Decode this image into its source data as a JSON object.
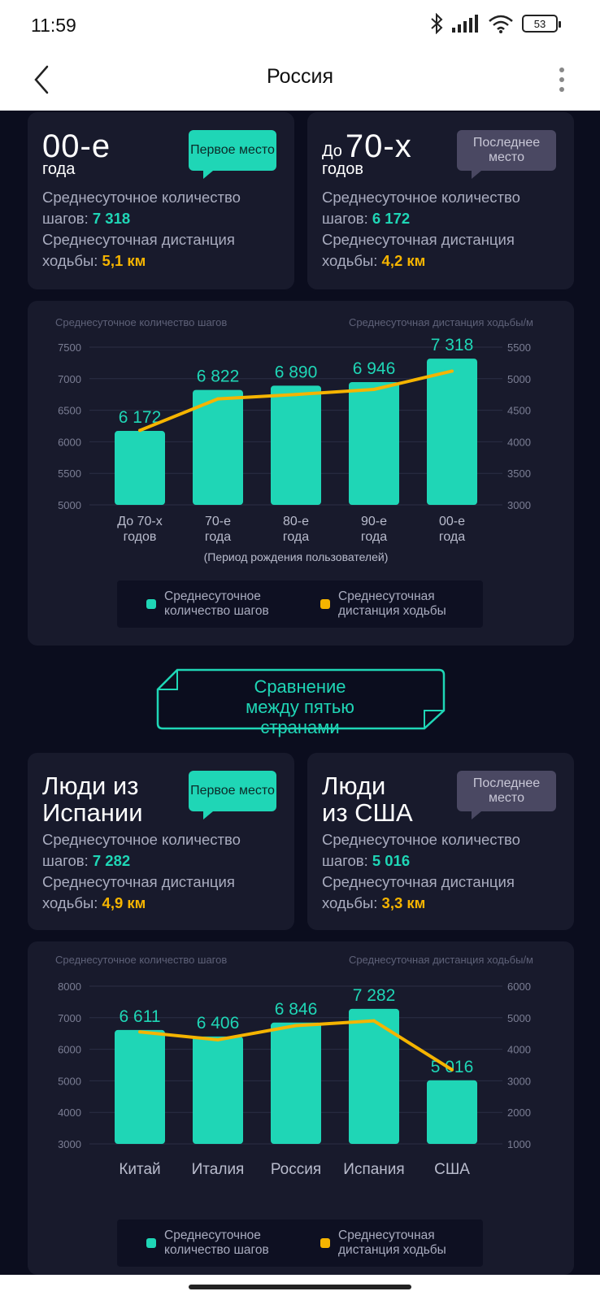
{
  "status": {
    "time": "11:59",
    "battery": "53"
  },
  "app_bar": {
    "title": "Россия"
  },
  "generation_cards": [
    {
      "prefix": "",
      "big": "00-е",
      "sub": "года",
      "badge": "Первое место",
      "badge_type": "first",
      "steps_label": "Среднесуточное количество шагов:",
      "steps_value": "7 318",
      "dist_label": "Среднесуточная дистанция ходьбы:",
      "dist_value": "5,1 км"
    },
    {
      "prefix": "До",
      "big": "70-х",
      "sub": "годов",
      "badge": "Последнее место",
      "badge_type": "last",
      "steps_label": "Среднесуточное количество шагов:",
      "steps_value": "6 172",
      "dist_label": "Среднесуточная дистанция ходьбы:",
      "dist_value": "4,2 км"
    }
  ],
  "country_cards": [
    {
      "line1": "Люди из",
      "line2": "Испании",
      "badge": "Первое место",
      "badge_type": "first",
      "steps_label": "Среднесуточное количество шагов:",
      "steps_value": "7 282",
      "dist_label": "Среднесуточная дистанция ходьбы:",
      "dist_value": "4,9 км"
    },
    {
      "line1": "Люди",
      "line2": "из США",
      "badge": "Последнее место",
      "badge_type": "last",
      "steps_label": "Среднесуточное количество шагов:",
      "steps_value": "5 016",
      "dist_label": "Среднесуточная дистанция ходьбы:",
      "dist_value": "3,3 км"
    }
  ],
  "compare_banner": "Сравнение между пятью странами",
  "legend": {
    "steps": "Среднесуточное количество шагов",
    "distance": "Среднесуточная дистанция ходьбы"
  },
  "colors": {
    "bar": "#1fd6b6",
    "line": "#f5b400",
    "card": "#181a2c",
    "background": "#0b0d1e"
  },
  "chart_data": [
    {
      "type": "bar",
      "ylabel_left": "Среднесуточное количество шагов",
      "ylabel_right": "Среднесуточная дистанция ходьбы/м",
      "xlabel": "(Период рождения пользователей)",
      "categories": [
        "До 70-х годов",
        "70-е года",
        "80-е года",
        "90-е года",
        "00-е года"
      ],
      "y_left": {
        "min": 5000,
        "max": 7500,
        "ticks": [
          5000,
          5500,
          6000,
          6500,
          7000,
          7500
        ]
      },
      "y_right": {
        "min": 3000,
        "max": 5500,
        "ticks": [
          3000,
          3500,
          4000,
          4500,
          5000,
          5500
        ]
      },
      "series": [
        {
          "name": "Среднесуточное количество шагов",
          "kind": "bar",
          "axis": "left",
          "values": [
            6172,
            6822,
            6890,
            6946,
            7318
          ],
          "labels": [
            "6 172",
            "6 822",
            "6 890",
            "6 946",
            "7 318"
          ]
        },
        {
          "name": "Среднесуточная дистанция ходьбы",
          "kind": "line",
          "axis": "right",
          "values": [
            4180,
            4680,
            4750,
            4830,
            5120
          ]
        }
      ]
    },
    {
      "type": "bar",
      "ylabel_left": "Среднесуточное количество шагов",
      "ylabel_right": "Среднесуточная дистанция ходьбы/м",
      "xlabel": "",
      "categories": [
        "Китай",
        "Италия",
        "Россия",
        "Испания",
        "США"
      ],
      "y_left": {
        "min": 3000,
        "max": 8000,
        "ticks": [
          3000,
          4000,
          5000,
          6000,
          7000,
          8000
        ]
      },
      "y_right": {
        "min": 1000,
        "max": 6000,
        "ticks": [
          1000,
          2000,
          3000,
          4000,
          5000,
          6000
        ]
      },
      "series": [
        {
          "name": "Среднесуточное количество шагов",
          "kind": "bar",
          "axis": "left",
          "values": [
            6611,
            6406,
            6846,
            7282,
            5016
          ],
          "labels": [
            "6 611",
            "6 406",
            "6 846",
            "7 282",
            "5 016"
          ]
        },
        {
          "name": "Среднесуточная дистанция ходьбы",
          "kind": "line",
          "axis": "right",
          "values": [
            4550,
            4300,
            4750,
            4900,
            3350
          ]
        }
      ]
    }
  ]
}
